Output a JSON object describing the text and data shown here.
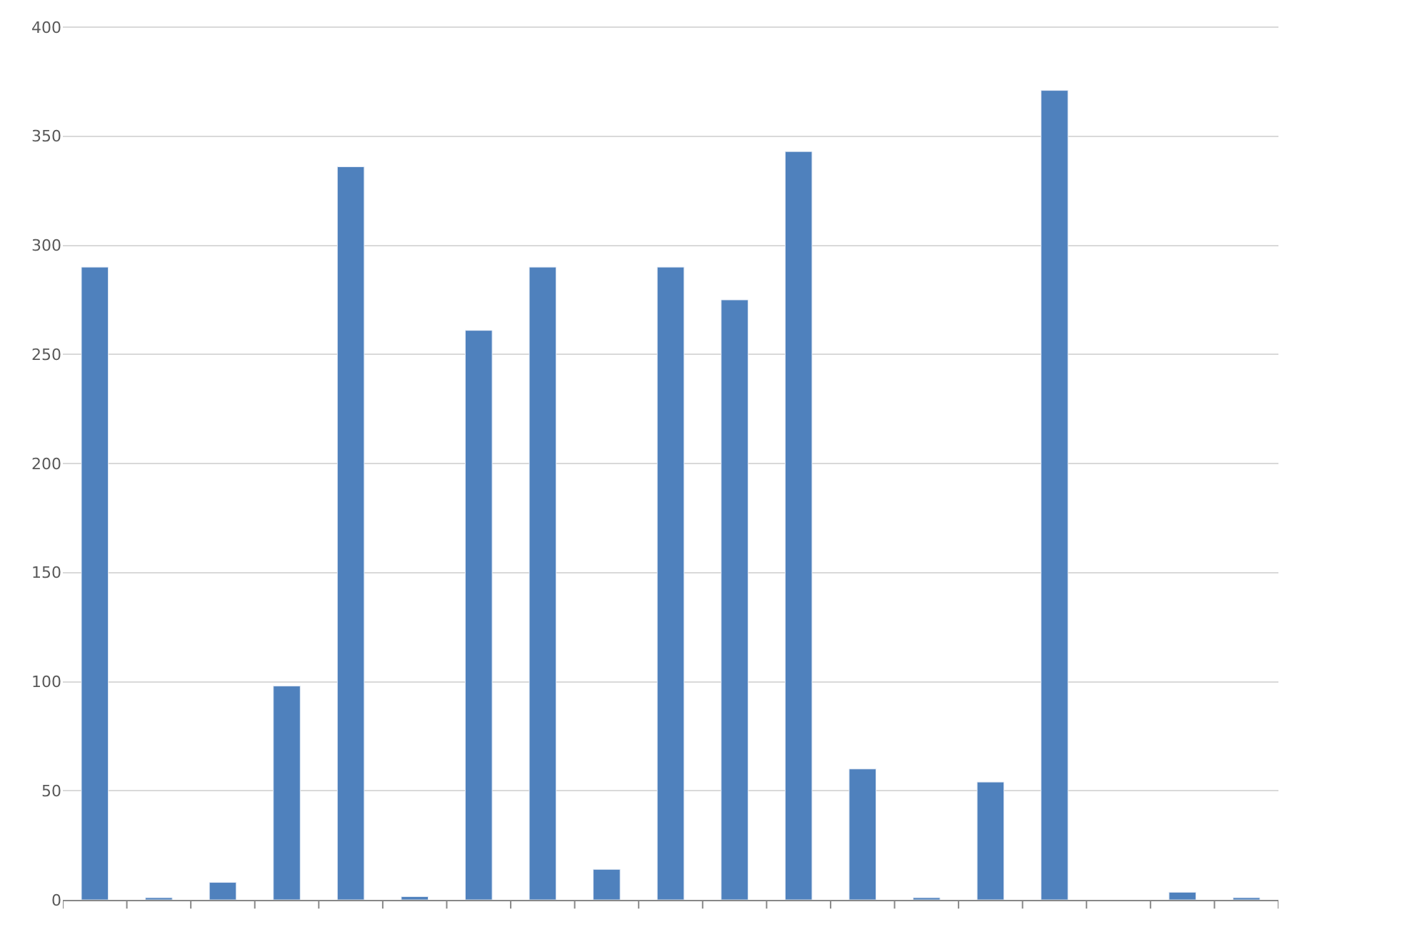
{
  "chart_data": {
    "type": "bar",
    "categories": [
      null,
      null,
      null,
      null,
      null,
      null,
      null,
      null,
      null,
      null,
      null,
      null,
      null,
      null,
      null,
      null,
      null,
      null,
      null
    ],
    "series": [
      {
        "color": "#4f81bd",
        "values": [
          290,
          1,
          8,
          98,
          336,
          1.5,
          261,
          290,
          14,
          290,
          275,
          343,
          60,
          1,
          54,
          371,
          null,
          3.5,
          1
        ]
      }
    ],
    "ylim": [
      0,
      400
    ],
    "yticks": [
      0,
      50,
      100,
      150,
      200,
      250,
      300,
      350,
      400
    ],
    "grid": "y"
  }
}
